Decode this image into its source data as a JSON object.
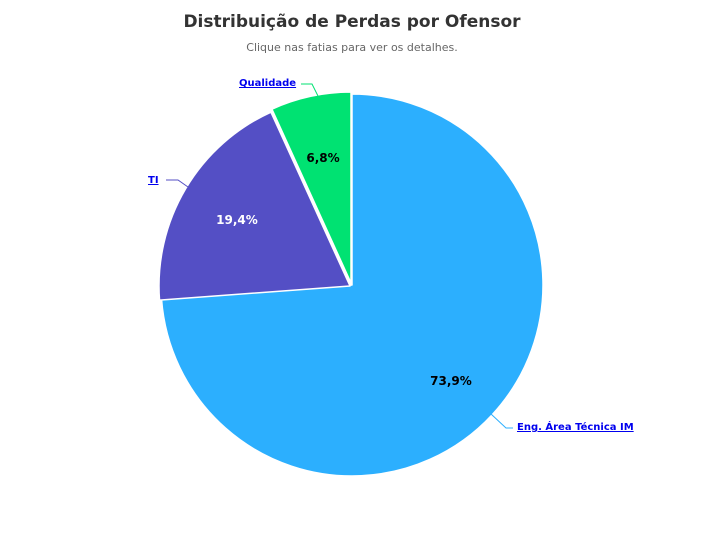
{
  "chart_data": {
    "type": "pie",
    "title": "Distribuição de Perdas por Ofensor",
    "subtitle": "Clique nas fatias para ver os detalhes.",
    "series": [
      {
        "values": [
          {
            "label": "Eng. Área Técnica IM",
            "value": 73.9,
            "percent_label": "73,9%",
            "color": "#2caffe"
          },
          {
            "label": "TI",
            "value": 19.4,
            "percent_label": "19,4%",
            "color": "#544fc5"
          },
          {
            "label": "Qualidade",
            "value": 6.8,
            "percent_label": "6,8%",
            "color": "#00e272"
          }
        ]
      }
    ],
    "data_label_colors": {
      "Eng. Área Técnica IM": "#000000",
      "TI": "#ffffff",
      "Qualidade": "#000000"
    }
  }
}
